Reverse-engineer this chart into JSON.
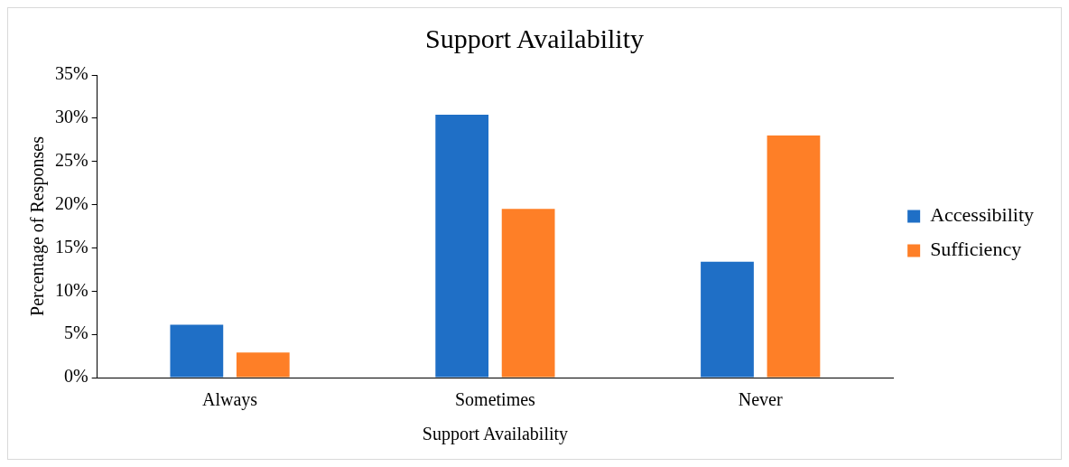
{
  "chart_data": {
    "type": "bar",
    "title": "Support Availability",
    "xlabel": "Support Availability",
    "ylabel": "Percentage of Responses",
    "categories": [
      "Always",
      "Sometimes",
      "Never"
    ],
    "series": [
      {
        "name": "Accessibility",
        "color": "#1f6fc6",
        "values": [
          6.1,
          30.4,
          13.4
        ]
      },
      {
        "name": "Sufficiency",
        "color": "#fe7f27",
        "values": [
          2.9,
          19.5,
          28.0
        ]
      }
    ],
    "ylim": [
      0,
      35
    ],
    "yticks": [
      {
        "value": 0,
        "label": "0%"
      },
      {
        "value": 5,
        "label": "5%"
      },
      {
        "value": 10,
        "label": "10%"
      },
      {
        "value": 15,
        "label": "15%"
      },
      {
        "value": 20,
        "label": "20%"
      },
      {
        "value": 25,
        "label": "25%"
      },
      {
        "value": 30,
        "label": "30%"
      },
      {
        "value": 35,
        "label": "35%"
      }
    ],
    "grid": false,
    "legend": "right"
  }
}
